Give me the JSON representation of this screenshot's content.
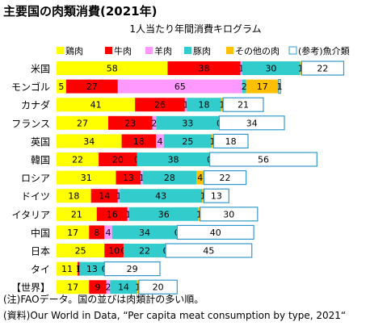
{
  "title": "主要国の肉類消費(2021年)",
  "subtitle": "1人当たり年間消費キログラム",
  "notes": [
    "(注)FAOデータ。国の並びは肉類計の多い順。",
    "(資料)Our World in Data, “Per capita meat consumption by type, 2021“"
  ],
  "chart_data": {
    "type": "bar",
    "orientation": "horizontal",
    "stacked": true,
    "title": "主要国の肉類消費(2021年)",
    "subtitle": "1人当たり年間消費キログラム",
    "legend_position": "top",
    "categories": [
      "米国",
      "モンゴル",
      "カナダ",
      "フランス",
      "英国",
      "韓国",
      "ロシア",
      "ドイツ",
      "イタリア",
      "中国",
      "日本",
      "タイ",
      "【世界】"
    ],
    "series": [
      {
        "name": "鶏肉",
        "color": "#ffff00",
        "values": [
          58,
          5,
          41,
          27,
          34,
          22,
          31,
          18,
          21,
          17,
          25,
          11,
          17
        ]
      },
      {
        "name": "牛肉",
        "color": "#ff0000",
        "values": [
          38,
          27,
          26,
          23,
          18,
          20,
          13,
          14,
          16,
          8,
          10,
          1,
          9
        ]
      },
      {
        "name": "羊肉",
        "color": "#ff99ff",
        "values": [
          1,
          65,
          1,
          2,
          4,
          0,
          1,
          1,
          1,
          4,
          0,
          0,
          2
        ]
      },
      {
        "name": "豚肉",
        "color": "#33cccc",
        "values": [
          30,
          2,
          18,
          33,
          25,
          38,
          28,
          43,
          36,
          34,
          22,
          13,
          14
        ]
      },
      {
        "name": "その他の肉",
        "color": "#ffc000",
        "values": [
          1,
          17,
          1,
          0,
          1,
          0,
          4,
          1,
          1,
          0,
          0,
          0,
          1
        ]
      },
      {
        "name": "(参考)魚介類",
        "color": "#ffffff",
        "outline": true,
        "values": [
          22,
          1,
          21,
          34,
          18,
          56,
          22,
          13,
          30,
          40,
          45,
          29,
          20
        ]
      }
    ]
  }
}
